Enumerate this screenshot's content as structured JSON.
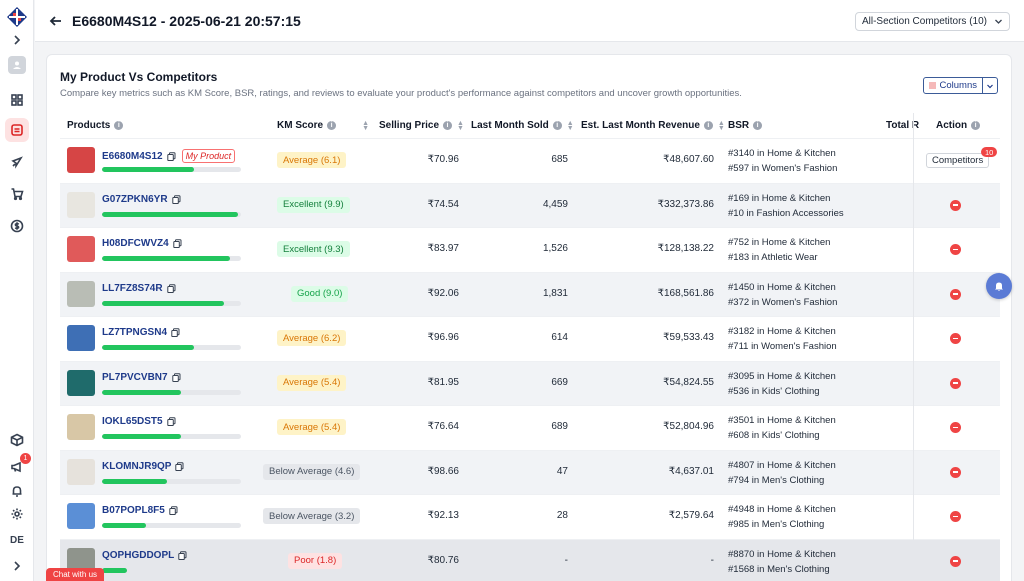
{
  "header": {
    "title": "E6680M4S12 - 2025-06-21 20:57:15",
    "section_select": "All-Section Competitors (10)"
  },
  "sidebar": {
    "badge_count": "1",
    "user_initials": "DE",
    "chat_label": "Chat with us"
  },
  "card": {
    "title": "My Product Vs Competitors",
    "subtitle": "Compare key metrics such as KM Score, BSR, ratings, and reviews to evaluate your product's performance against competitors and uncover growth opportunities.",
    "columns_label": "Columns"
  },
  "table": {
    "headers": {
      "products": "Products",
      "km_score": "KM Score",
      "selling_price": "Selling Price",
      "last_month_sold": "Last Month Sold",
      "est_revenue": "Est. Last Month Revenue",
      "bsr": "BSR",
      "total_r": "Total R",
      "action": "Action"
    },
    "my_product_label": "My Product",
    "competitors_label": "Competitors",
    "competitors_count": "10",
    "rows": [
      {
        "id": "E6680M4S12",
        "score": "Average (6.1)",
        "tier": "average",
        "bar": 0.66,
        "price": "₹70.96",
        "sold": "685",
        "revenue": "₹48,607.60",
        "bsr1": "#3140 in Home & Kitchen",
        "bsr2": "#597 in Women's Fashion",
        "mine": true,
        "thumb": "#d64545"
      },
      {
        "id": "G07ZPKN6YR",
        "score": "Excellent (9.9)",
        "tier": "excellent",
        "bar": 0.98,
        "price": "₹74.54",
        "sold": "4,459",
        "revenue": "₹332,373.86",
        "bsr1": "#169 in Home & Kitchen",
        "bsr2": "#10 in Fashion Accessories",
        "thumb": "#e8e6e0"
      },
      {
        "id": "H08DFCWVZ4",
        "score": "Excellent (9.3)",
        "tier": "excellent",
        "bar": 0.92,
        "price": "₹83.97",
        "sold": "1,526",
        "revenue": "₹128,138.22",
        "bsr1": "#752 in Home & Kitchen",
        "bsr2": "#183 in Athletic Wear",
        "thumb": "#e05a5a"
      },
      {
        "id": "LL7FZ8S74R",
        "score": "Good (9.0)",
        "tier": "good",
        "bar": 0.88,
        "price": "₹92.06",
        "sold": "1,831",
        "revenue": "₹168,561.86",
        "bsr1": "#1450 in Home & Kitchen",
        "bsr2": "#372 in Women's Fashion",
        "thumb": "#b9bdb5"
      },
      {
        "id": "LZ7TPNGSN4",
        "score": "Average (6.2)",
        "tier": "average",
        "bar": 0.66,
        "price": "₹96.96",
        "sold": "614",
        "revenue": "₹59,533.43",
        "bsr1": "#3182 in Home & Kitchen",
        "bsr2": "#711 in Women's Fashion",
        "thumb": "#3e6fb5"
      },
      {
        "id": "PL7PVCVBN7",
        "score": "Average (5.4)",
        "tier": "average",
        "bar": 0.57,
        "price": "₹81.95",
        "sold": "669",
        "revenue": "₹54,824.55",
        "bsr1": "#3095 in Home & Kitchen",
        "bsr2": "#536 in Kids' Clothing",
        "thumb": "#1f6b6b"
      },
      {
        "id": "IOKL65DST5",
        "score": "Average (5.4)",
        "tier": "average",
        "bar": 0.57,
        "price": "₹76.64",
        "sold": "689",
        "revenue": "₹52,804.96",
        "bsr1": "#3501 in Home & Kitchen",
        "bsr2": "#608 in Kids' Clothing",
        "thumb": "#d8c7a6"
      },
      {
        "id": "KLOMNJR9QP",
        "score": "Below Average (4.6)",
        "tier": "below",
        "bar": 0.47,
        "price": "₹98.66",
        "sold": "47",
        "revenue": "₹4,637.01",
        "bsr1": "#4807 in Home & Kitchen",
        "bsr2": "#794 in Men's Clothing",
        "thumb": "#e6e2dc"
      },
      {
        "id": "B07POPL8F5",
        "score": "Below Average (3.2)",
        "tier": "below",
        "bar": 0.32,
        "price": "₹92.13",
        "sold": "28",
        "revenue": "₹2,579.64",
        "bsr1": "#4948 in Home & Kitchen",
        "bsr2": "#985 in Men's Clothing",
        "thumb": "#5b8fd6"
      },
      {
        "id": "QOPHGDDOPL",
        "score": "Poor (1.8)",
        "tier": "poor",
        "bar": 0.18,
        "price": "₹80.76",
        "sold": "-",
        "revenue": "-",
        "bsr1": "#8870 in Home & Kitchen",
        "bsr2": "#1568 in Men's Clothing",
        "thumb": "#8f948c"
      }
    ]
  },
  "colors": {
    "accent": "#ef4444",
    "link": "#1e3a8a",
    "bar": "#22c55e"
  }
}
